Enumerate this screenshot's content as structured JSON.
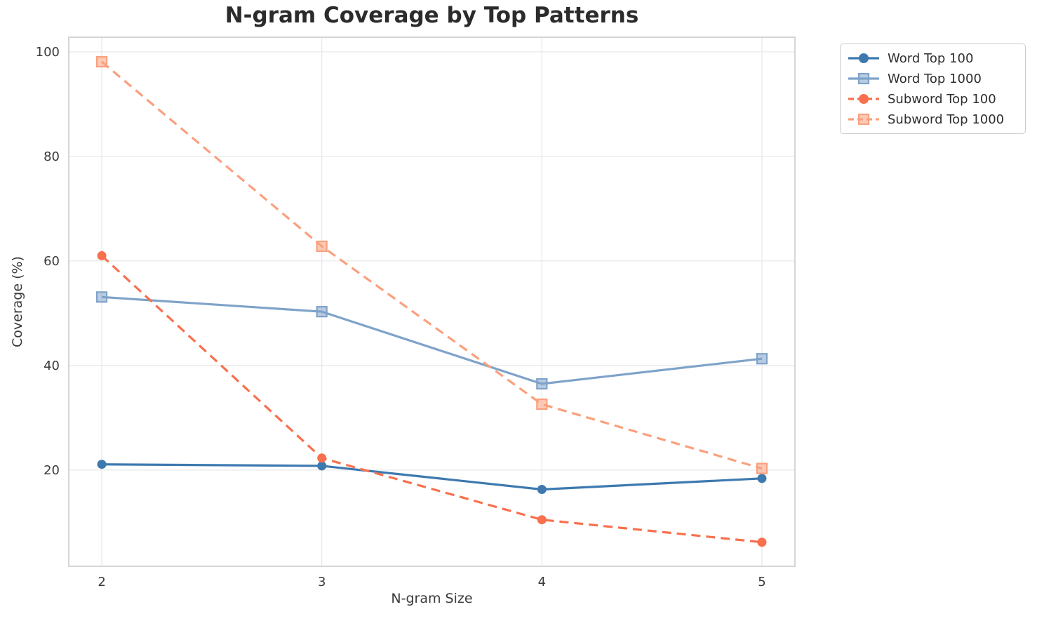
{
  "chart_data": {
    "type": "line",
    "title": "N-gram Coverage by Top Patterns",
    "xlabel": "N-gram Size",
    "ylabel": "Coverage (%)",
    "x": [
      2,
      3,
      4,
      5
    ],
    "xticks": [
      "2",
      "3",
      "4",
      "5"
    ],
    "yticks": [
      20,
      40,
      60,
      80,
      100
    ],
    "xlim": [
      1.85,
      5.15
    ],
    "ylim": [
      1.6,
      102.8
    ],
    "grid": true,
    "legend_position": "outside-upper-right",
    "series": [
      {
        "name": "Word Top 100",
        "values": [
          21.1,
          20.8,
          16.3,
          18.4
        ],
        "color": "#3d79af",
        "marker": "circle",
        "line_style": "solid"
      },
      {
        "name": "Word Top 1000",
        "values": [
          53.1,
          50.3,
          36.5,
          41.3
        ],
        "color": "#7fa3c9",
        "marker": "square",
        "line_style": "solid"
      },
      {
        "name": "Subword Top 100",
        "values": [
          61.0,
          22.3,
          10.5,
          6.2
        ],
        "color": "#f8704d",
        "marker": "circle",
        "line_style": "dashed"
      },
      {
        "name": "Subword Top 1000",
        "values": [
          98.1,
          62.8,
          32.6,
          20.3
        ],
        "color": "#faa07e",
        "marker": "square",
        "line_style": "dashed"
      }
    ],
    "style": {
      "grid_color": "#e8e8e8",
      "spine_color": "#cbcbcb",
      "text_color": "#3a3a3a",
      "title_color": "#2b2b2b",
      "background": "#ffffff"
    }
  }
}
